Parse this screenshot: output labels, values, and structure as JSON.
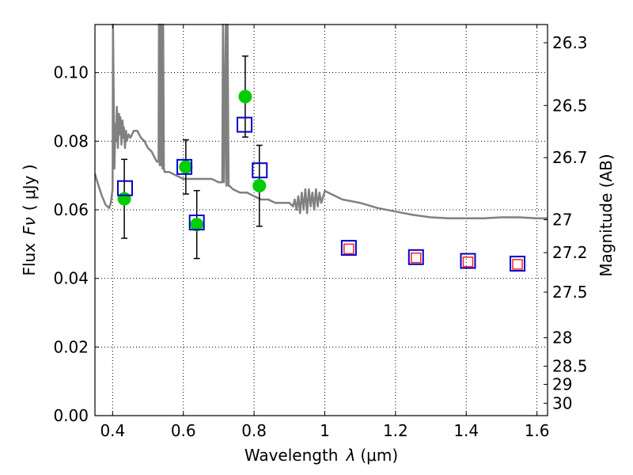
{
  "chart_data": {
    "type": "scatter",
    "title": "",
    "xlabel_text": "Wavelength",
    "xlabel_symbol": "λ",
    "xlabel_unit": "(μm)",
    "ylabel_text": "Flux",
    "ylabel_symbol": "Fν",
    "ylabel_unit": "( μJy )",
    "y2label": "Magnitude (AB)",
    "xlim": [
      0.35,
      1.63
    ],
    "ylim": [
      0.0,
      0.114
    ],
    "grid": true,
    "x_ticks": [
      {
        "value": 0.4,
        "label": "0.4"
      },
      {
        "value": 0.6,
        "label": "0.6"
      },
      {
        "value": 0.8,
        "label": "0.8"
      },
      {
        "value": 1.0,
        "label": "1"
      },
      {
        "value": 1.2,
        "label": "1.2"
      },
      {
        "value": 1.4,
        "label": "1.4"
      },
      {
        "value": 1.6,
        "label": "1.6"
      }
    ],
    "y_ticks": [
      {
        "value": 0.0,
        "label": "0.00"
      },
      {
        "value": 0.02,
        "label": "0.02"
      },
      {
        "value": 0.04,
        "label": "0.04"
      },
      {
        "value": 0.06,
        "label": "0.06"
      },
      {
        "value": 0.08,
        "label": "0.08"
      },
      {
        "value": 0.1,
        "label": "0.10"
      }
    ],
    "y2_ticks": [
      {
        "label": "26.3",
        "flux": 0.1087
      },
      {
        "label": "26.5",
        "flux": 0.0904
      },
      {
        "label": "26.7",
        "flux": 0.0752
      },
      {
        "label": "27",
        "flux": 0.0571
      },
      {
        "label": "27.2",
        "flux": 0.0475
      },
      {
        "label": "27.5",
        "flux": 0.036
      },
      {
        "label": "28",
        "flux": 0.0227
      },
      {
        "label": "28.5",
        "flux": 0.0144
      },
      {
        "label": "29",
        "flux": 0.0091
      },
      {
        "label": "30",
        "flux": 0.0036
      }
    ],
    "series": [
      {
        "kind": "line",
        "color": "#808080",
        "x": [
          0.35,
          0.36,
          0.37,
          0.38,
          0.39,
          0.395,
          0.4,
          0.401,
          0.405,
          0.408,
          0.41,
          0.412,
          0.415,
          0.418,
          0.42,
          0.422,
          0.425,
          0.428,
          0.43,
          0.432,
          0.435,
          0.438,
          0.44,
          0.445,
          0.45,
          0.455,
          0.46,
          0.47,
          0.48,
          0.49,
          0.5,
          0.51,
          0.52,
          0.525,
          0.53,
          0.531,
          0.533,
          0.535,
          0.537,
          0.54,
          0.541,
          0.543,
          0.545,
          0.547,
          0.55,
          0.56,
          0.58,
          0.6,
          0.62,
          0.64,
          0.66,
          0.68,
          0.7,
          0.71,
          0.712,
          0.715,
          0.72,
          0.722,
          0.725,
          0.728,
          0.73,
          0.74,
          0.76,
          0.78,
          0.8,
          0.82,
          0.84,
          0.86,
          0.88,
          0.9,
          0.91,
          0.915,
          0.92,
          0.925,
          0.93,
          0.935,
          0.94,
          0.945,
          0.95,
          0.955,
          0.96,
          0.965,
          0.97,
          0.975,
          0.98,
          0.985,
          0.99,
          1.0,
          1.05,
          1.1,
          1.15,
          1.2,
          1.25,
          1.3,
          1.35,
          1.4,
          1.45,
          1.5,
          1.55,
          1.6,
          1.63
        ],
        "y": [
          0.0705,
          0.067,
          0.064,
          0.0615,
          0.0605,
          0.062,
          0.066,
          0.114,
          0.072,
          0.085,
          0.08,
          0.09,
          0.078,
          0.088,
          0.082,
          0.087,
          0.079,
          0.086,
          0.081,
          0.084,
          0.078,
          0.083,
          0.08,
          0.082,
          0.081,
          0.082,
          0.083,
          0.083,
          0.081,
          0.08,
          0.078,
          0.077,
          0.075,
          0.074,
          0.074,
          0.114,
          0.073,
          0.114,
          0.073,
          0.114,
          0.072,
          0.114,
          0.072,
          0.071,
          0.071,
          0.071,
          0.07,
          0.069,
          0.069,
          0.069,
          0.069,
          0.069,
          0.068,
          0.068,
          0.114,
          0.068,
          0.114,
          0.067,
          0.114,
          0.067,
          0.067,
          0.066,
          0.065,
          0.065,
          0.064,
          0.063,
          0.063,
          0.062,
          0.062,
          0.062,
          0.061,
          0.063,
          0.06,
          0.064,
          0.059,
          0.065,
          0.06,
          0.066,
          0.059,
          0.066,
          0.061,
          0.065,
          0.06,
          0.066,
          0.061,
          0.065,
          0.062,
          0.0655,
          0.063,
          0.062,
          0.0605,
          0.0595,
          0.0585,
          0.0578,
          0.0575,
          0.0575,
          0.0575,
          0.0578,
          0.0578,
          0.0575,
          0.0575
        ]
      },
      {
        "kind": "points-with-errors",
        "color": "#00cc00",
        "x": [
          0.433,
          0.607,
          0.638,
          0.775,
          0.815
        ],
        "y": [
          0.0632,
          0.0725,
          0.0557,
          0.093,
          0.067
        ],
        "yerr": [
          0.0115,
          0.0079,
          0.0099,
          0.0118,
          0.0118
        ]
      },
      {
        "kind": "open-squares",
        "color": "#0000cc",
        "x": [
          0.435,
          0.603,
          0.638,
          0.773,
          0.816,
          1.068,
          1.258,
          1.405,
          1.545
        ],
        "y": [
          0.0663,
          0.0725,
          0.0563,
          0.0848,
          0.0715,
          0.0489,
          0.0462,
          0.0451,
          0.0443
        ]
      },
      {
        "kind": "open-squares",
        "color": "#ff2020",
        "x": [
          1.068,
          1.258,
          1.405,
          1.545
        ],
        "y": [
          0.0486,
          0.046,
          0.0448,
          0.0441
        ]
      }
    ]
  }
}
